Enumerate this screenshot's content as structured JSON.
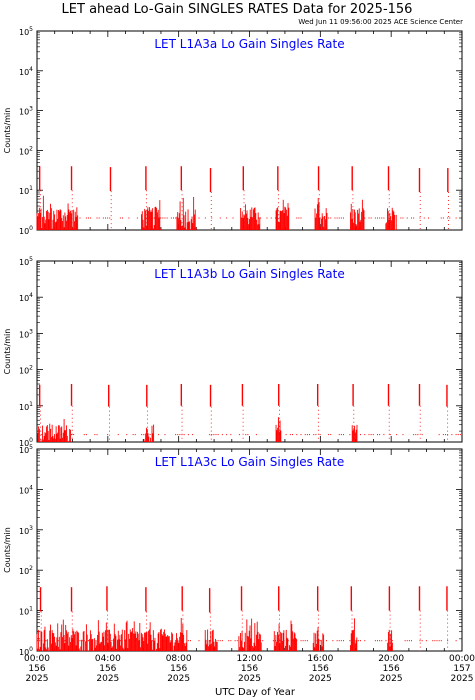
{
  "page": {
    "title": "LET ahead Lo-Gain SINGLES RATES Data for 2025-156",
    "timestamp": "Wed Jun 11 09:56:00 2025 ACE Science Center",
    "xlabel": "UTC Day of Year"
  },
  "colors": {
    "data": "#ff0000",
    "panel_title": "#0000ff",
    "axes": "#000000"
  },
  "chart_data": [
    {
      "type": "line",
      "title": "LET L1A3a Lo Gain Singles Rate",
      "ylabel": "Counts/min",
      "y_scale": "log",
      "ylim": [
        1,
        100000
      ],
      "y_ticks": [
        1,
        10,
        100,
        1000,
        10000,
        100000
      ],
      "xlim": [
        0,
        24
      ],
      "x_unit": "hours UTC, day 156 of 2025",
      "baseline": 2,
      "series": [
        {
          "spikes": [
            {
              "x": 0.15,
              "y": 40
            },
            {
              "x": 1.95,
              "y": 40
            },
            {
              "x": 4.15,
              "y": 38
            },
            {
              "x": 6.15,
              "y": 40
            },
            {
              "x": 8.15,
              "y": 40
            },
            {
              "x": 9.8,
              "y": 36
            },
            {
              "x": 11.65,
              "y": 40
            },
            {
              "x": 13.6,
              "y": 40
            },
            {
              "x": 15.9,
              "y": 40
            },
            {
              "x": 17.8,
              "y": 40
            },
            {
              "x": 19.85,
              "y": 40
            },
            {
              "x": 21.6,
              "y": 36
            },
            {
              "x": 23.2,
              "y": 36
            }
          ],
          "dense_intervals": [
            [
              0.0,
              2.3
            ],
            [
              5.9,
              7.0
            ],
            [
              7.9,
              9.0
            ],
            [
              11.5,
              12.6
            ],
            [
              13.5,
              14.3
            ],
            [
              15.7,
              16.4
            ],
            [
              17.7,
              18.5
            ],
            [
              19.7,
              20.3
            ]
          ]
        }
      ]
    },
    {
      "type": "line",
      "title": "LET L1A3b Lo Gain Singles Rate",
      "ylabel": "Counts/min",
      "y_scale": "log",
      "ylim": [
        1,
        100000
      ],
      "y_ticks": [
        1,
        10,
        100,
        1000,
        10000,
        100000
      ],
      "xlim": [
        0,
        24
      ],
      "x_unit": "hours UTC, day 156 of 2025",
      "baseline": 1.6,
      "series": [
        {
          "spikes": [
            {
              "x": 0.15,
              "y": 38
            },
            {
              "x": 1.95,
              "y": 40
            },
            {
              "x": 4.05,
              "y": 38
            },
            {
              "x": 6.2,
              "y": 38
            },
            {
              "x": 8.15,
              "y": 40
            },
            {
              "x": 9.8,
              "y": 38
            },
            {
              "x": 11.6,
              "y": 40
            },
            {
              "x": 13.65,
              "y": 40
            },
            {
              "x": 15.85,
              "y": 40
            },
            {
              "x": 17.85,
              "y": 40
            },
            {
              "x": 19.85,
              "y": 40
            },
            {
              "x": 21.6,
              "y": 40
            },
            {
              "x": 23.15,
              "y": 38
            }
          ],
          "dense_intervals": [
            [
              0.0,
              1.9
            ],
            [
              6.0,
              6.6
            ],
            [
              13.5,
              13.8
            ],
            [
              17.8,
              18.1
            ]
          ]
        }
      ]
    },
    {
      "type": "line",
      "title": "LET L1A3c Lo Gain Singles Rate",
      "ylabel": "Counts/min",
      "y_scale": "log",
      "ylim": [
        1,
        100000
      ],
      "y_ticks": [
        1,
        10,
        100,
        1000,
        10000,
        100000
      ],
      "xlim": [
        0,
        24
      ],
      "x_unit": "hours UTC, day 156 of 2025",
      "baseline": 1.8,
      "series": [
        {
          "spikes": [
            {
              "x": 0.2,
              "y": 38
            },
            {
              "x": 1.95,
              "y": 38
            },
            {
              "x": 3.95,
              "y": 40
            },
            {
              "x": 6.15,
              "y": 38
            },
            {
              "x": 8.2,
              "y": 40
            },
            {
              "x": 9.75,
              "y": 36
            },
            {
              "x": 11.55,
              "y": 40
            },
            {
              "x": 13.65,
              "y": 40
            },
            {
              "x": 15.85,
              "y": 40
            },
            {
              "x": 17.75,
              "y": 40
            },
            {
              "x": 19.9,
              "y": 40
            },
            {
              "x": 21.6,
              "y": 40
            },
            {
              "x": 23.15,
              "y": 40
            }
          ],
          "dense_intervals": [
            [
              0.0,
              8.5
            ],
            [
              9.5,
              10.2
            ],
            [
              11.4,
              12.7
            ],
            [
              13.4,
              14.7
            ],
            [
              15.6,
              16.2
            ],
            [
              17.7,
              18.1
            ],
            [
              19.8,
              20.1
            ]
          ]
        }
      ]
    }
  ],
  "x_axis": {
    "ticks": [
      {
        "time": "00:00",
        "day": "156",
        "year": "2025"
      },
      {
        "time": "04:00",
        "day": "156",
        "year": "2025"
      },
      {
        "time": "08:00",
        "day": "156",
        "year": "2025"
      },
      {
        "time": "12:00",
        "day": "156",
        "year": "2025"
      },
      {
        "time": "16:00",
        "day": "156",
        "year": "2025"
      },
      {
        "time": "20:00",
        "day": "156",
        "year": "2025"
      },
      {
        "time": "00:00",
        "day": "157",
        "year": "2025"
      }
    ]
  }
}
